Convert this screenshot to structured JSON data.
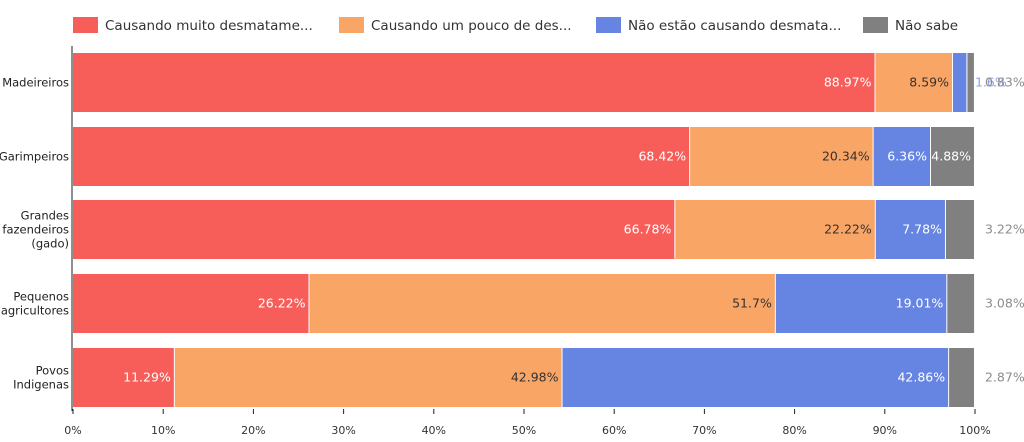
{
  "chart_data": {
    "type": "bar",
    "orientation": "horizontal",
    "stacked": true,
    "normalized": true,
    "categories": [
      "Madeireiros",
      "Garimpeiros",
      "Grandes fazendeiros (gado)",
      "Pequenos agricultores",
      "Povos Indigenas"
    ],
    "series": [
      {
        "name": "Causando muito desmatame...",
        "color": "#f75e5a",
        "values": [
          88.97,
          68.42,
          66.78,
          26.22,
          11.29
        ]
      },
      {
        "name": "Causando um pouco de des...",
        "color": "#f9a566",
        "values": [
          8.59,
          20.34,
          22.22,
          51.7,
          42.98
        ]
      },
      {
        "name": "Não estão causando desmata...",
        "color": "#6684e2",
        "values": [
          1.6,
          6.36,
          7.78,
          19.01,
          42.86
        ]
      },
      {
        "name": "Não sabe",
        "color": "#808080",
        "values": [
          0.83,
          4.88,
          3.22,
          3.08,
          2.87
        ]
      }
    ],
    "value_labels": [
      [
        "88.97%",
        "8.59%",
        "1.6%",
        "0.83%"
      ],
      [
        "68.42%",
        "20.34%",
        "6.36%",
        "4.88%"
      ],
      [
        "66.78%",
        "22.22%",
        "7.78%",
        "3.22%"
      ],
      [
        "26.22%",
        "51.7%",
        "19.01%",
        "3.08%"
      ],
      [
        "11.29%",
        "42.98%",
        "42.86%",
        "2.87%"
      ]
    ],
    "xlim": [
      0,
      100
    ],
    "x_ticks": [
      "0%",
      "10%",
      "20%",
      "30%",
      "40%",
      "50%",
      "60%",
      "70%",
      "80%",
      "90%",
      "100%"
    ],
    "legend_position": "top",
    "grid": false,
    "title": "",
    "xlabel": "",
    "ylabel": ""
  }
}
